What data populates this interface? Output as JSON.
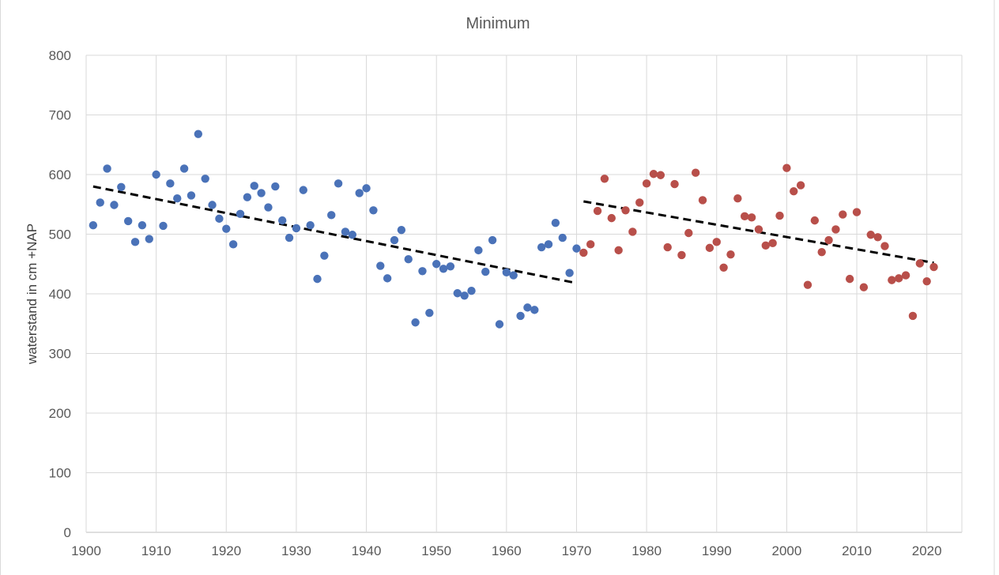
{
  "chart_data": {
    "type": "scatter",
    "title": "Minimum",
    "xlabel": "",
    "ylabel": "waterstand in cm +NAP",
    "xlim": [
      1900,
      2025
    ],
    "ylim": [
      0,
      800
    ],
    "x_ticks": [
      1900,
      1910,
      1920,
      1930,
      1940,
      1950,
      1960,
      1970,
      1980,
      1990,
      2000,
      2010,
      2020
    ],
    "y_ticks": [
      0,
      100,
      200,
      300,
      400,
      500,
      600,
      700,
      800
    ],
    "grid": true,
    "legend": "none",
    "series": [
      {
        "color": "#4a72b8",
        "points": [
          [
            1901,
            515
          ],
          [
            1902,
            553
          ],
          [
            1903,
            610
          ],
          [
            1904,
            549
          ],
          [
            1905,
            579
          ],
          [
            1906,
            522
          ],
          [
            1907,
            487
          ],
          [
            1908,
            515
          ],
          [
            1909,
            492
          ],
          [
            1910,
            600
          ],
          [
            1911,
            514
          ],
          [
            1912,
            585
          ],
          [
            1913,
            560
          ],
          [
            1914,
            610
          ],
          [
            1915,
            565
          ],
          [
            1916,
            668
          ],
          [
            1917,
            593
          ],
          [
            1918,
            549
          ],
          [
            1919,
            526
          ],
          [
            1920,
            509
          ],
          [
            1921,
            483
          ],
          [
            1922,
            534
          ],
          [
            1923,
            562
          ],
          [
            1924,
            581
          ],
          [
            1925,
            569
          ],
          [
            1926,
            545
          ],
          [
            1927,
            580
          ],
          [
            1928,
            523
          ],
          [
            1929,
            494
          ],
          [
            1930,
            510
          ],
          [
            1931,
            574
          ],
          [
            1932,
            515
          ],
          [
            1933,
            425
          ],
          [
            1934,
            464
          ],
          [
            1935,
            532
          ],
          [
            1936,
            585
          ],
          [
            1937,
            504
          ],
          [
            1938,
            499
          ],
          [
            1939,
            569
          ],
          [
            1940,
            577
          ],
          [
            1941,
            540
          ],
          [
            1942,
            447
          ],
          [
            1943,
            426
          ],
          [
            1944,
            490
          ],
          [
            1945,
            507
          ],
          [
            1946,
            458
          ],
          [
            1947,
            352
          ],
          [
            1948,
            438
          ],
          [
            1949,
            368
          ],
          [
            1950,
            450
          ],
          [
            1951,
            442
          ],
          [
            1952,
            446
          ],
          [
            1953,
            401
          ],
          [
            1954,
            397
          ],
          [
            1955,
            405
          ],
          [
            1956,
            473
          ],
          [
            1957,
            437
          ],
          [
            1958,
            490
          ],
          [
            1959,
            349
          ],
          [
            1960,
            436
          ],
          [
            1961,
            431
          ],
          [
            1962,
            363
          ],
          [
            1963,
            377
          ],
          [
            1964,
            373
          ],
          [
            1965,
            478
          ],
          [
            1966,
            483
          ],
          [
            1967,
            519
          ],
          [
            1968,
            494
          ],
          [
            1969,
            435
          ],
          [
            1970,
            476
          ]
        ],
        "trend": [
          [
            1901,
            580
          ],
          [
            1970,
            418
          ]
        ]
      },
      {
        "color": "#b84f4a",
        "points": [
          [
            1971,
            469
          ],
          [
            1972,
            483
          ],
          [
            1973,
            539
          ],
          [
            1974,
            593
          ],
          [
            1975,
            527
          ],
          [
            1976,
            473
          ],
          [
            1977,
            540
          ],
          [
            1978,
            504
          ],
          [
            1979,
            553
          ],
          [
            1980,
            585
          ],
          [
            1981,
            601
          ],
          [
            1982,
            599
          ],
          [
            1983,
            478
          ],
          [
            1984,
            584
          ],
          [
            1985,
            465
          ],
          [
            1986,
            502
          ],
          [
            1987,
            603
          ],
          [
            1988,
            557
          ],
          [
            1989,
            477
          ],
          [
            1990,
            487
          ],
          [
            1991,
            444
          ],
          [
            1992,
            466
          ],
          [
            1993,
            560
          ],
          [
            1994,
            530
          ],
          [
            1995,
            528
          ],
          [
            1996,
            508
          ],
          [
            1997,
            481
          ],
          [
            1998,
            485
          ],
          [
            1999,
            531
          ],
          [
            2000,
            611
          ],
          [
            2001,
            572
          ],
          [
            2002,
            582
          ],
          [
            2003,
            415
          ],
          [
            2004,
            523
          ],
          [
            2005,
            470
          ],
          [
            2006,
            490
          ],
          [
            2007,
            508
          ],
          [
            2008,
            533
          ],
          [
            2009,
            425
          ],
          [
            2010,
            537
          ],
          [
            2011,
            411
          ],
          [
            2012,
            499
          ],
          [
            2013,
            495
          ],
          [
            2014,
            480
          ],
          [
            2015,
            423
          ],
          [
            2016,
            426
          ],
          [
            2017,
            431
          ],
          [
            2018,
            363
          ],
          [
            2019,
            451
          ],
          [
            2020,
            421
          ],
          [
            2021,
            445
          ]
        ],
        "trend": [
          [
            1971,
            555
          ],
          [
            2021,
            452
          ]
        ]
      }
    ]
  }
}
